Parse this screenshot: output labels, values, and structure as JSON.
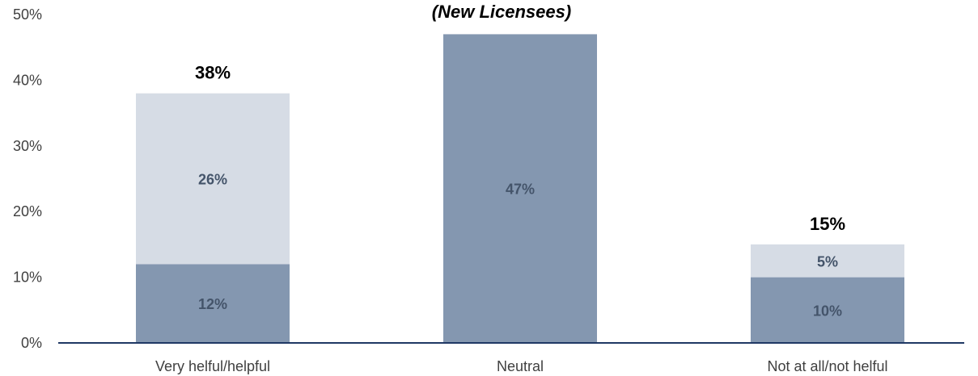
{
  "chart_data": {
    "type": "bar",
    "stacked": true,
    "title": "(New Licensees)",
    "categories": [
      "Very helful/helpful",
      "Neutral",
      "Not at all/not helful"
    ],
    "series": [
      {
        "values": [
          12,
          47,
          10
        ],
        "labels": [
          "12%",
          "47%",
          "10%"
        ],
        "color": "#8497b0"
      },
      {
        "values": [
          26,
          0,
          5
        ],
        "labels": [
          "26%",
          "",
          "5%"
        ],
        "color": "#d6dce5"
      }
    ],
    "totals": [
      "38%",
      "",
      "15%"
    ],
    "y_ticks": [
      "0%",
      "10%",
      "20%",
      "30%",
      "40%",
      "50%"
    ],
    "ylim": [
      0,
      50
    ],
    "grid": false,
    "axis_color": "#1f3864",
    "label_color": "#44546a"
  }
}
